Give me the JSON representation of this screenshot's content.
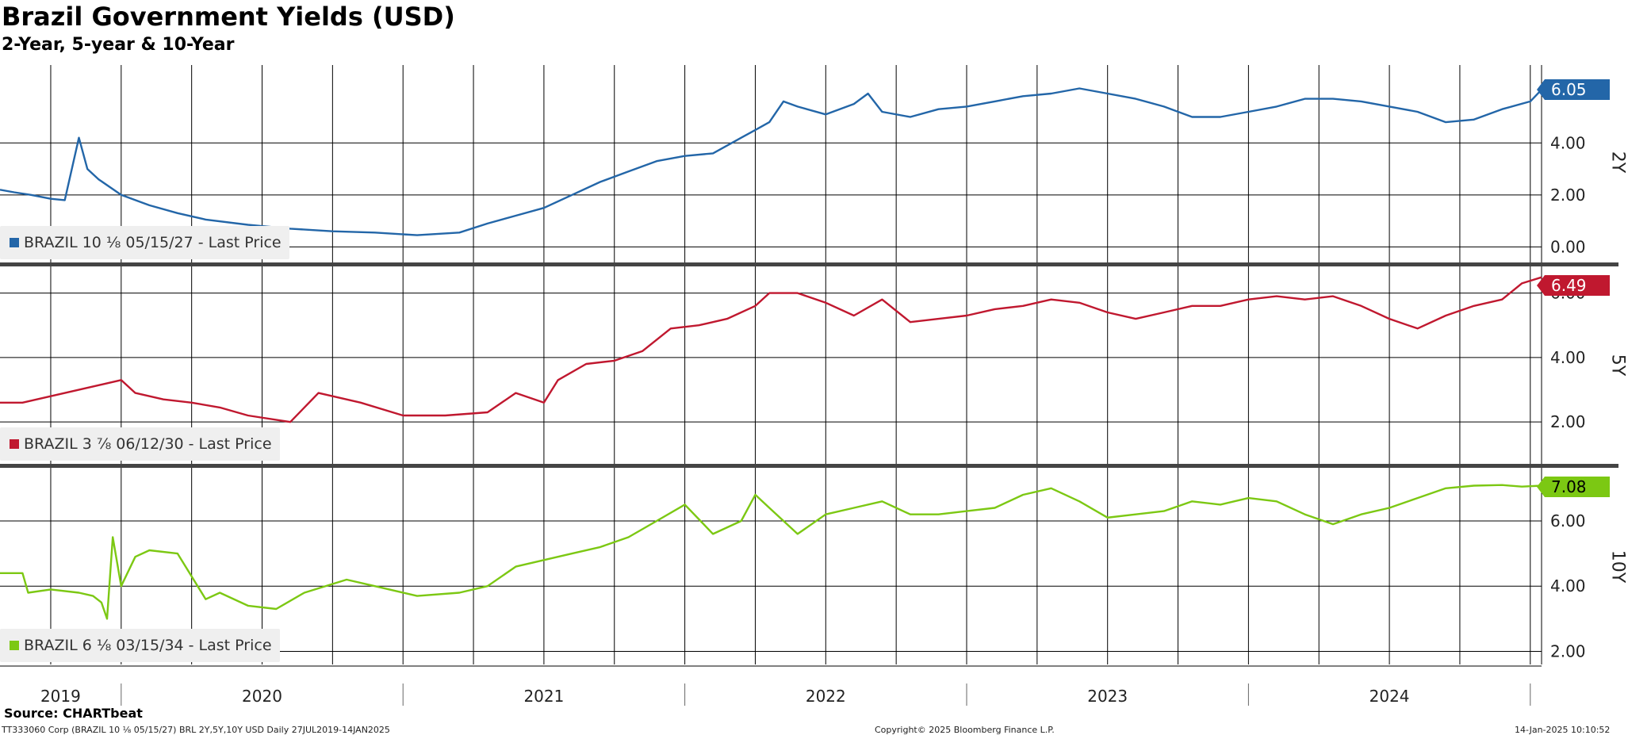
{
  "title": "Brazil Government Yields (USD)",
  "subtitle": "2-Year, 5-year & 10-Year",
  "source": "Source: CHARTbeat",
  "footer": {
    "left": "TT333060 Corp (BRAZIL 10 ⅛ 05/15/27) BRL 2Y,5Y,10Y USD  Daily 27JUL2019-14JAN2025",
    "center": "Copyright© 2025 Bloomberg Finance L.P.",
    "right": "14-Jan-2025 10:10:52"
  },
  "colors": {
    "2Y": "#2366a8",
    "5Y": "#c0182f",
    "10Y": "#7cc813",
    "grid": "#000000",
    "divider": "#444444"
  },
  "chart_data": [
    {
      "type": "line",
      "panel": "2Y",
      "ylabel": "2Y",
      "legend": "BRAZIL 10 ⅛  05/15/27 - Last Price",
      "last_value": "6.05",
      "yticks": [
        "0.00",
        "2.00",
        "4.00"
      ],
      "ylim": [
        -0.6,
        7.0
      ],
      "x": [
        2019.57,
        2019.62,
        2019.68,
        2019.75,
        2019.8,
        2019.85,
        2019.88,
        2019.92,
        2020.0,
        2020.1,
        2020.2,
        2020.3,
        2020.45,
        2020.6,
        2020.75,
        2020.9,
        2021.05,
        2021.2,
        2021.3,
        2021.4,
        2021.5,
        2021.6,
        2021.7,
        2021.8,
        2021.9,
        2022.0,
        2022.1,
        2022.2,
        2022.25,
        2022.3,
        2022.35,
        2022.4,
        2022.5,
        2022.6,
        2022.65,
        2022.7,
        2022.8,
        2022.9,
        2023.0,
        2023.1,
        2023.2,
        2023.3,
        2023.4,
        2023.5,
        2023.6,
        2023.7,
        2023.8,
        2023.9,
        2024.0,
        2024.1,
        2024.2,
        2024.3,
        2024.4,
        2024.5,
        2024.6,
        2024.7,
        2024.8,
        2024.9,
        2025.0,
        2025.04
      ],
      "values": [
        2.2,
        2.1,
        2.0,
        1.85,
        1.8,
        4.2,
        3.0,
        2.6,
        2.0,
        1.6,
        1.3,
        1.05,
        0.85,
        0.7,
        0.6,
        0.55,
        0.45,
        0.55,
        0.9,
        1.2,
        1.5,
        2.0,
        2.5,
        2.9,
        3.3,
        3.5,
        3.6,
        4.2,
        4.5,
        4.8,
        5.6,
        5.4,
        5.1,
        5.5,
        5.9,
        5.2,
        5.0,
        5.3,
        5.4,
        5.6,
        5.8,
        5.9,
        6.1,
        5.9,
        5.7,
        5.4,
        5.0,
        5.0,
        5.2,
        5.4,
        5.7,
        5.7,
        5.6,
        5.4,
        5.2,
        4.8,
        4.9,
        5.3,
        5.6,
        6.05
      ],
      "series": [
        {
          "name": "BRAZIL 10 ⅛  05/15/27 - Last Price"
        }
      ]
    },
    {
      "type": "line",
      "panel": "5Y",
      "ylabel": "5Y",
      "legend": "BRAZIL 3 ⅞  06/12/30 - Last Price",
      "last_value": "6.49",
      "yticks": [
        "2.00",
        "4.00",
        "6.00"
      ],
      "ylim": [
        0.7,
        6.9
      ],
      "x": [
        2019.57,
        2019.62,
        2019.65,
        2020.0,
        2020.05,
        2020.15,
        2020.25,
        2020.35,
        2020.45,
        2020.6,
        2020.7,
        2020.85,
        2021.0,
        2021.15,
        2021.3,
        2021.4,
        2021.5,
        2021.55,
        2021.65,
        2021.75,
        2021.85,
        2021.95,
        2022.05,
        2022.15,
        2022.25,
        2022.3,
        2022.4,
        2022.5,
        2022.6,
        2022.7,
        2022.8,
        2022.9,
        2023.0,
        2023.1,
        2023.2,
        2023.3,
        2023.4,
        2023.5,
        2023.6,
        2023.7,
        2023.8,
        2023.9,
        2024.0,
        2024.1,
        2024.2,
        2024.3,
        2024.4,
        2024.5,
        2024.6,
        2024.7,
        2024.8,
        2024.9,
        2024.97,
        2025.04
      ],
      "values": [
        2.6,
        2.6,
        2.6,
        3.3,
        2.9,
        2.7,
        2.6,
        2.45,
        2.2,
        2.0,
        2.9,
        2.6,
        2.2,
        2.2,
        2.3,
        2.9,
        2.6,
        3.3,
        3.8,
        3.9,
        4.2,
        4.9,
        5.0,
        5.2,
        5.6,
        6.0,
        6.0,
        5.7,
        5.3,
        5.8,
        5.1,
        5.2,
        5.3,
        5.5,
        5.6,
        5.8,
        5.7,
        5.4,
        5.2,
        5.4,
        5.6,
        5.6,
        5.8,
        5.9,
        5.8,
        5.9,
        5.6,
        5.2,
        4.9,
        5.3,
        5.6,
        5.8,
        6.3,
        6.49
      ],
      "series": [
        {
          "name": "BRAZIL 3 ⅞  06/12/30 - Last Price"
        }
      ]
    },
    {
      "type": "line",
      "panel": "10Y",
      "ylabel": "10Y",
      "legend": "BRAZIL 6 ⅛  03/15/34 - Last Price",
      "last_value": "7.08",
      "yticks": [
        "2.00",
        "4.00",
        "6.00"
      ],
      "ylim": [
        1.6,
        7.7
      ],
      "x": [
        2019.57,
        2019.65,
        2019.67,
        2019.75,
        2019.85,
        2019.9,
        2019.93,
        2019.95,
        2019.97,
        2020.0,
        2020.05,
        2020.1,
        2020.2,
        2020.3,
        2020.35,
        2020.45,
        2020.55,
        2020.65,
        2020.8,
        2020.9,
        2021.05,
        2021.2,
        2021.3,
        2021.4,
        2021.5,
        2021.6,
        2021.7,
        2021.8,
        2021.9,
        2022.0,
        2022.1,
        2022.2,
        2022.25,
        2022.3,
        2022.4,
        2022.5,
        2022.6,
        2022.7,
        2022.8,
        2022.9,
        2023.0,
        2023.1,
        2023.2,
        2023.3,
        2023.4,
        2023.5,
        2023.6,
        2023.7,
        2023.8,
        2023.9,
        2024.0,
        2024.1,
        2024.2,
        2024.3,
        2024.4,
        2024.5,
        2024.6,
        2024.7,
        2024.8,
        2024.9,
        2024.97,
        2025.04
      ],
      "values": [
        4.4,
        4.4,
        3.8,
        3.9,
        3.8,
        3.7,
        3.5,
        3.0,
        5.5,
        4.0,
        4.9,
        5.1,
        5.0,
        3.6,
        3.8,
        3.4,
        3.3,
        3.8,
        4.2,
        4.0,
        3.7,
        3.8,
        4.0,
        4.6,
        4.8,
        5.0,
        5.2,
        5.5,
        6.0,
        6.5,
        5.6,
        6.0,
        6.8,
        6.4,
        5.6,
        6.2,
        6.4,
        6.6,
        6.2,
        6.2,
        6.3,
        6.4,
        6.8,
        7.0,
        6.6,
        6.1,
        6.2,
        6.3,
        6.6,
        6.5,
        6.7,
        6.6,
        6.2,
        5.9,
        6.2,
        6.4,
        6.7,
        7.0,
        7.08,
        7.1,
        7.05,
        7.08
      ],
      "series": [
        {
          "name": "BRAZIL 6 ⅛  03/15/34 - Last Price"
        }
      ]
    }
  ],
  "xaxis": {
    "labels": [
      "2019",
      "2020",
      "2021",
      "2022",
      "2023",
      "2024"
    ],
    "range": [
      2019.57,
      2025.04
    ]
  }
}
